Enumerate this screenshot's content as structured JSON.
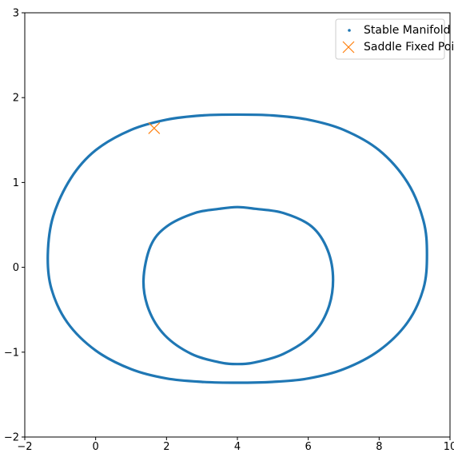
{
  "chart_data": {
    "type": "scatter",
    "title": "",
    "xlabel": "",
    "ylabel": "",
    "xlim": [
      -2,
      10
    ],
    "ylim": [
      -2,
      3
    ],
    "grid": false,
    "legend_position": "top-right",
    "x_ticks": [
      "−2",
      "0",
      "2",
      "4",
      "6",
      "8",
      "10"
    ],
    "x_tick_values": [
      -2,
      0,
      2,
      4,
      6,
      8,
      10
    ],
    "y_ticks": [
      "−2",
      "−1",
      "0",
      "1",
      "2",
      "3"
    ],
    "y_tick_values": [
      -2,
      -1,
      0,
      1,
      2,
      3
    ],
    "series": [
      {
        "name": "Stable Manifold",
        "color": "#1f77b4",
        "marker": "dot",
        "curves": [
          {
            "shape": "closed",
            "points": [
              [
                -1.35,
                0.15
              ],
              [
                -1.2,
                0.6
              ],
              [
                -0.7,
                1.05
              ],
              [
                0.0,
                1.38
              ],
              [
                1.0,
                1.62
              ],
              [
                2.0,
                1.74
              ],
              [
                3.0,
                1.79
              ],
              [
                4.0,
                1.8
              ],
              [
                5.0,
                1.79
              ],
              [
                6.0,
                1.74
              ],
              [
                7.0,
                1.62
              ],
              [
                8.0,
                1.38
              ],
              [
                8.8,
                1.0
              ],
              [
                9.25,
                0.55
              ],
              [
                9.35,
                0.15
              ],
              [
                9.25,
                -0.25
              ],
              [
                8.8,
                -0.65
              ],
              [
                8.0,
                -0.98
              ],
              [
                7.0,
                -1.2
              ],
              [
                6.0,
                -1.31
              ],
              [
                5.0,
                -1.35
              ],
              [
                4.0,
                -1.36
              ],
              [
                3.0,
                -1.35
              ],
              [
                2.0,
                -1.31
              ],
              [
                1.0,
                -1.2
              ],
              [
                0.0,
                -0.98
              ],
              [
                -0.8,
                -0.65
              ],
              [
                -1.25,
                -0.25
              ]
            ]
          },
          {
            "shape": "closed",
            "points": [
              [
                1.35,
                -0.15
              ],
              [
                1.55,
                0.25
              ],
              [
                2.0,
                0.48
              ],
              [
                2.8,
                0.64
              ],
              [
                3.5,
                0.69
              ],
              [
                4.0,
                0.71
              ],
              [
                4.5,
                0.69
              ],
              [
                5.3,
                0.64
              ],
              [
                6.1,
                0.48
              ],
              [
                6.55,
                0.2
              ],
              [
                6.7,
                -0.15
              ],
              [
                6.55,
                -0.5
              ],
              [
                6.1,
                -0.8
              ],
              [
                5.3,
                -1.02
              ],
              [
                4.5,
                -1.12
              ],
              [
                4.0,
                -1.14
              ],
              [
                3.5,
                -1.12
              ],
              [
                2.7,
                -1.02
              ],
              [
                1.95,
                -0.8
              ],
              [
                1.5,
                -0.5
              ]
            ]
          }
        ]
      },
      {
        "name": "Saddle Fixed Point",
        "color": "#ff7f0e",
        "marker": "x",
        "points": [
          [
            1.65,
            1.64
          ]
        ]
      }
    ]
  }
}
